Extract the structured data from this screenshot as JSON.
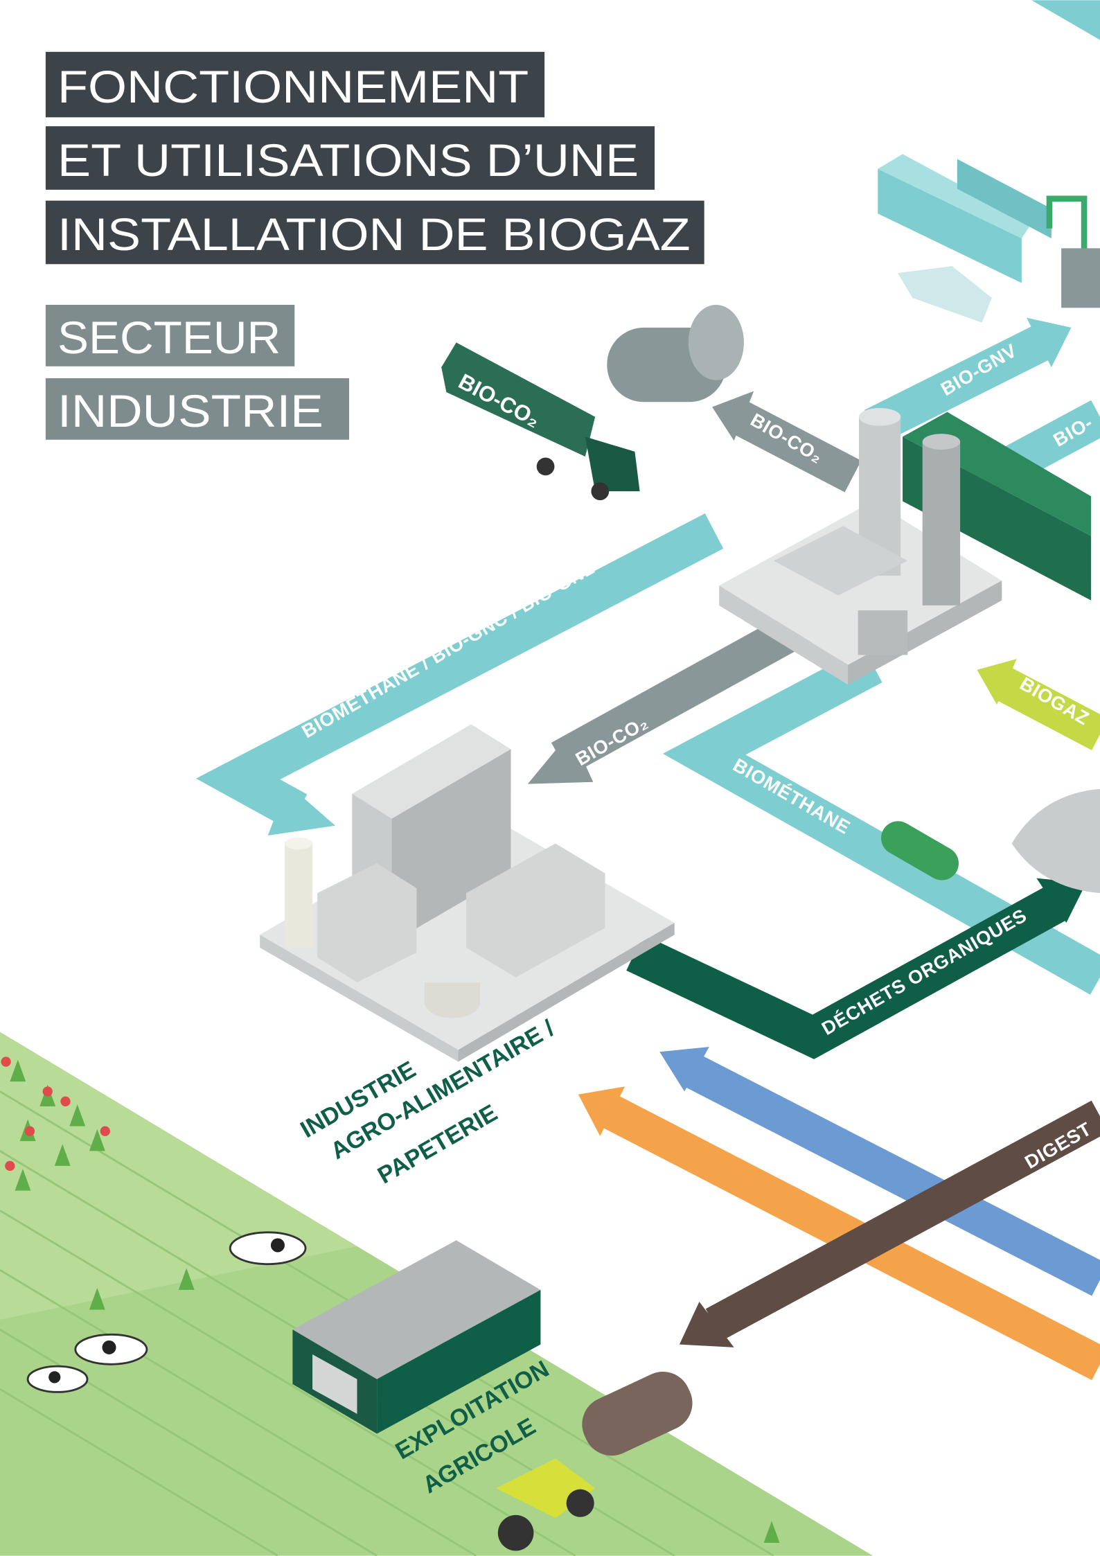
{
  "title": {
    "lines": [
      "FONCTIONNEMENT",
      "ET UTILISATIONS D’UNE",
      "INSTALLATION DE BIOGAZ"
    ]
  },
  "sector": {
    "lines": [
      "SECTEUR",
      "INDUSTRIE"
    ]
  },
  "truck_label": "BIO-CO₂",
  "flows": {
    "bio_co2_tank": "BIO-CO₂",
    "bio_gnv": "BIO-GNV",
    "bio_cut": "BIO-",
    "biomethane_gnc_gnl": "BIOMÉTHANE / BIO-GNC / BIO-GNL",
    "bio_co2_industry": "BIO-CO₂",
    "biogaz": "BIOGAZ",
    "biomethane": "BIOMÉTHANE",
    "dechets": "DÉCHETS ORGANIQUES",
    "digestat": "DIGEST"
  },
  "sites": {
    "industry": [
      "INDUSTRIE",
      "AGRO-ALIMENTAIRE /",
      "PAPETERIE"
    ],
    "farm": [
      "EXPLOITATION",
      "AGRICOLE"
    ]
  }
}
